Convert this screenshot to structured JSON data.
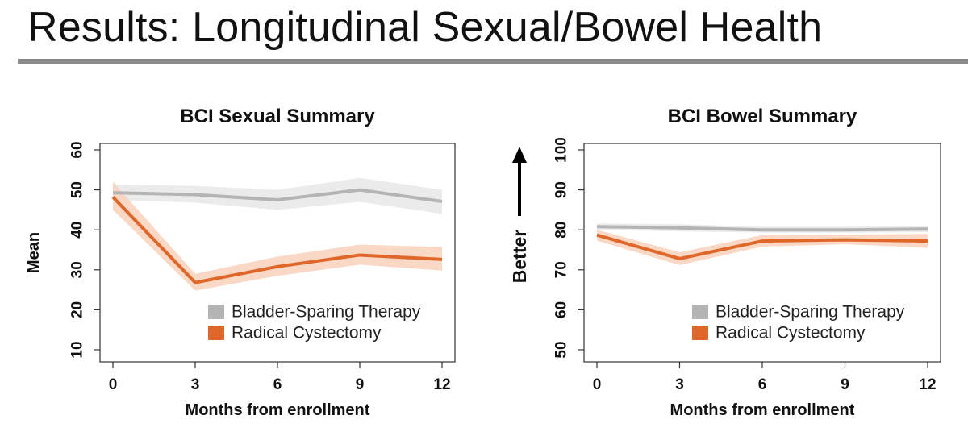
{
  "slide": {
    "title": "Results: Longitudinal Sexual/Bowel Health"
  },
  "colors": {
    "bladder_sparing": "#b4b4b4",
    "bladder_sparing_band": "#e8e8e8",
    "radical_cystectomy": "#e0672a",
    "radical_cystectomy_band": "#f8d2bc",
    "title_rule": "#8a8a8a"
  },
  "chart_data": [
    {
      "type": "line",
      "title": "BCI Sexual Summary",
      "xlabel": "Months from enrollment",
      "ylabel": "Mean",
      "x": [
        0,
        3,
        6,
        9,
        12
      ],
      "xlim": [
        0,
        12
      ],
      "ylim": [
        10,
        60
      ],
      "yticks": [
        10,
        20,
        30,
        40,
        50,
        60
      ],
      "grid": false,
      "legend_position": "bottom-right",
      "series": [
        {
          "name": "Bladder-Sparing Therapy",
          "values": [
            49.3,
            48.8,
            47.5,
            50,
            47.1
          ],
          "lower": [
            47.5,
            46.8,
            45,
            47,
            44
          ],
          "upper": [
            51.3,
            51,
            50,
            53,
            50
          ]
        },
        {
          "name": "Radical Cystectomy",
          "values": [
            48.2,
            26.8,
            30.8,
            33.7,
            32.6
          ],
          "lower": [
            45,
            24.8,
            28.5,
            31.3,
            29.8
          ],
          "upper": [
            52,
            29,
            33.3,
            36.3,
            35.7
          ]
        }
      ]
    },
    {
      "type": "line",
      "title": "BCI Bowel Summary",
      "xlabel": "Months from enrollment",
      "ylabel": "Better",
      "x": [
        0,
        3,
        6,
        9,
        12
      ],
      "xlim": [
        0,
        12
      ],
      "ylim": [
        50,
        100
      ],
      "yticks": [
        50,
        60,
        70,
        80,
        90,
        100
      ],
      "grid": false,
      "legend_position": "bottom-right",
      "series": [
        {
          "name": "Bladder-Sparing Therapy",
          "values": [
            80.8,
            80.5,
            80,
            80,
            80.2
          ],
          "lower": [
            80,
            79.6,
            79.3,
            79.3,
            79.4
          ],
          "upper": [
            81.6,
            81.4,
            80.8,
            80.8,
            81
          ]
        },
        {
          "name": "Radical Cystectomy",
          "values": [
            78.7,
            72.8,
            77.2,
            77.5,
            77.2
          ],
          "lower": [
            77.3,
            71.2,
            75.8,
            76.4,
            75.5
          ],
          "upper": [
            80,
            74.4,
            78.7,
            78.8,
            79
          ]
        }
      ]
    }
  ]
}
